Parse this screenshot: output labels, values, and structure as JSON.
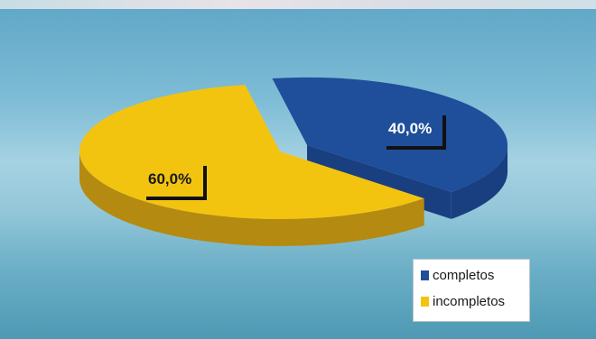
{
  "chart_data": {
    "type": "pie",
    "style": "3d",
    "series": [
      {
        "name": "completos",
        "value": 40.0,
        "label": "40,0%",
        "color": "#1f4f9a",
        "side_color": "#1a3f80",
        "exploded": true
      },
      {
        "name": "incompletos",
        "value": 60.0,
        "label": "60,0%",
        "color": "#f2c410",
        "side_color": "#b58a10",
        "exploded": false
      }
    ],
    "legend": {
      "position": "bottom-right",
      "entries": [
        "completos",
        "incompletos"
      ]
    },
    "label_color": "#ffffff",
    "label_color_dark": "#1a1a1a",
    "background": "#7fbdd6"
  }
}
